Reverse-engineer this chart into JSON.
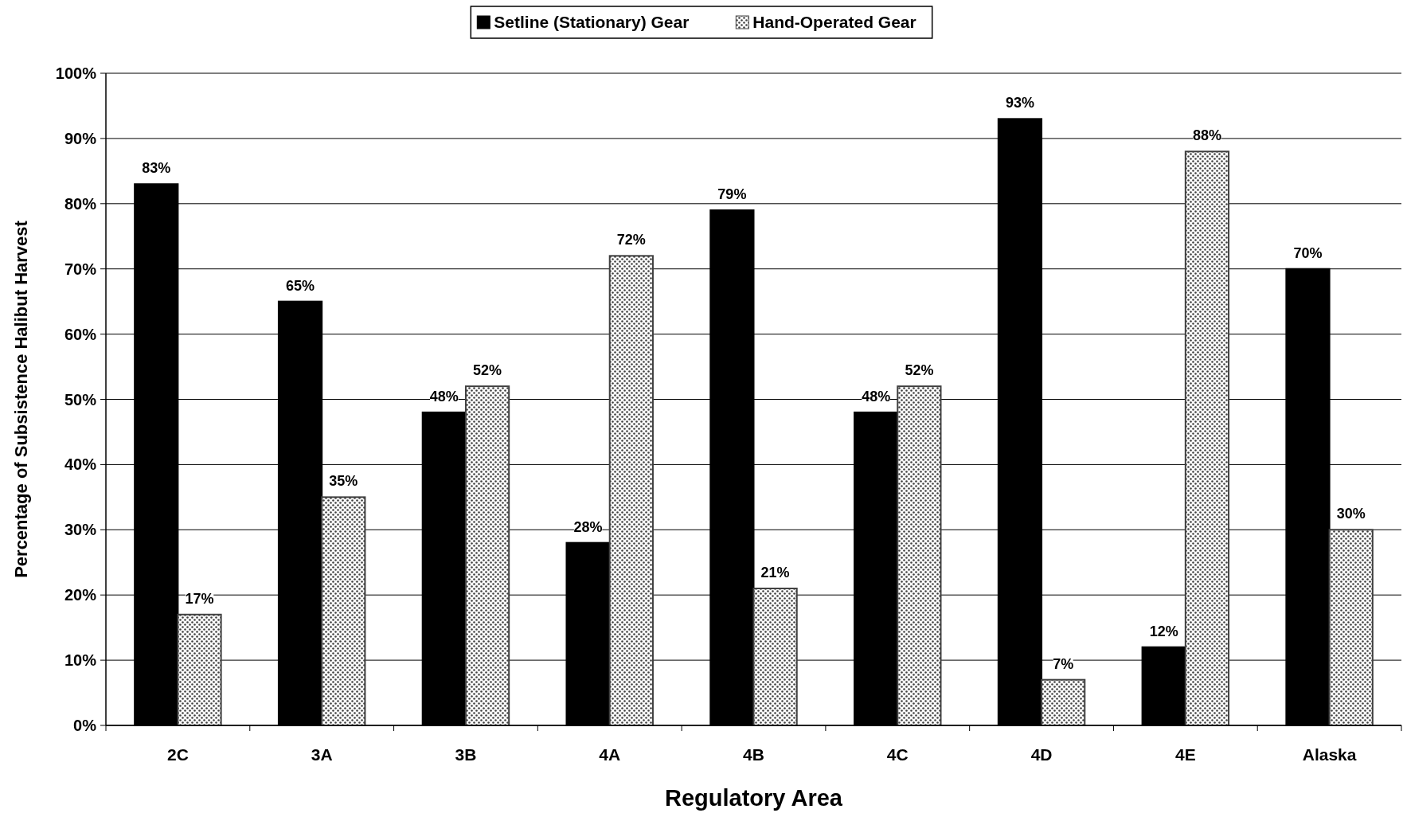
{
  "chart_data": {
    "type": "bar",
    "xlabel": "Regulatory Area",
    "ylabel": "Percentage of Subsistence Halibut Harvest",
    "categories": [
      "2C",
      "3A",
      "3B",
      "4A",
      "4B",
      "4C",
      "4D",
      "4E",
      "Alaska"
    ],
    "series": [
      {
        "name": "Setline (Stationary) Gear",
        "color": "#000000",
        "values": [
          83,
          65,
          48,
          28,
          79,
          48,
          93,
          12,
          70
        ]
      },
      {
        "name": "Hand-Operated Gear",
        "color": "#404040",
        "values": [
          17,
          35,
          52,
          72,
          21,
          52,
          7,
          88,
          30
        ]
      }
    ],
    "ylim": [
      0,
      100
    ],
    "yticks": [
      {
        "value": 0,
        "label": "0%"
      },
      {
        "value": 10,
        "label": "10%"
      },
      {
        "value": 20,
        "label": "20%"
      },
      {
        "value": 30,
        "label": "30%"
      },
      {
        "value": 40,
        "label": "40%"
      },
      {
        "value": 50,
        "label": "50%"
      },
      {
        "value": 60,
        "label": "60%"
      },
      {
        "value": 70,
        "label": "70%"
      },
      {
        "value": 80,
        "label": "80%"
      },
      {
        "value": 90,
        "label": "90%"
      },
      {
        "value": 100,
        "label": "100%"
      }
    ],
    "value_labels": [
      [
        "83%",
        "65%",
        "48%",
        "28%",
        "79%",
        "48%",
        "93%",
        "12%",
        "70%"
      ],
      [
        "17%",
        "35%",
        "52%",
        "72%",
        "21%",
        "52%",
        "7%",
        "88%",
        "30%"
      ]
    ],
    "grid": "y",
    "legend": "top"
  }
}
